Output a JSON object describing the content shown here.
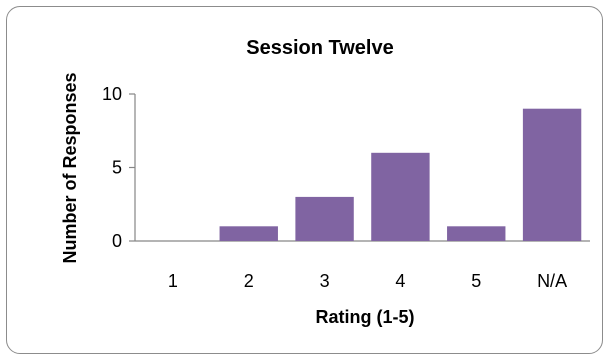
{
  "chart_data": {
    "type": "bar",
    "title": "Session Twelve",
    "xlabel": "Rating  (1-5)",
    "ylabel": "Number of Responses",
    "categories": [
      "1",
      "2",
      "3",
      "4",
      "5",
      "N/A"
    ],
    "values": [
      0,
      1,
      3,
      6,
      1,
      9
    ],
    "ylim": [
      0,
      10
    ],
    "yticks": [
      "0",
      "5",
      "10"
    ],
    "grid": false,
    "legend": "none",
    "bar_color": "#8064a2"
  }
}
